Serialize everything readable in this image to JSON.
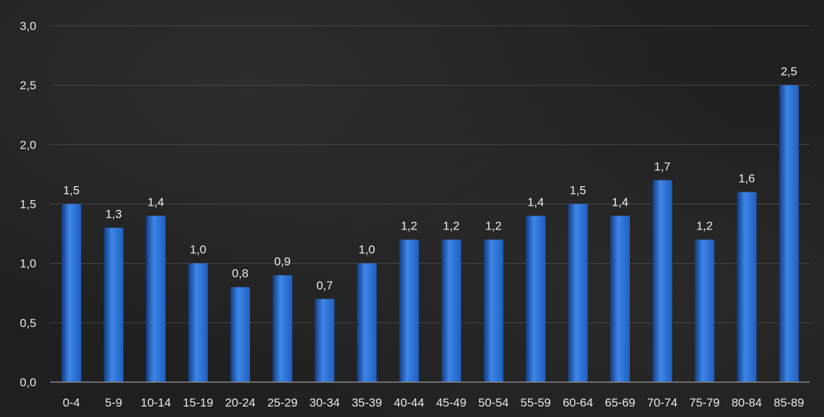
{
  "chart_data": {
    "type": "bar",
    "categories": [
      "0-4",
      "5-9",
      "10-14",
      "15-19",
      "20-24",
      "25-29",
      "30-34",
      "35-39",
      "40-44",
      "45-49",
      "50-54",
      "55-59",
      "60-64",
      "65-69",
      "70-74",
      "75-79",
      "80-84",
      "85-89"
    ],
    "values": [
      1.5,
      1.3,
      1.4,
      1.0,
      0.8,
      0.9,
      0.7,
      1.0,
      1.2,
      1.2,
      1.2,
      1.4,
      1.5,
      1.4,
      1.7,
      1.2,
      1.6,
      2.5
    ],
    "data_labels": [
      "1,5",
      "1,3",
      "1,4",
      "1,0",
      "0,8",
      "0,9",
      "0,7",
      "1,0",
      "1,2",
      "1,2",
      "1,2",
      "1,4",
      "1,5",
      "1,4",
      "1,7",
      "1,2",
      "1,6",
      "2,5"
    ],
    "ylim": [
      0,
      3.0
    ],
    "yticks": [
      0,
      0.5,
      1.0,
      1.5,
      2.0,
      2.5,
      3.0
    ],
    "ytick_labels": [
      "0,0",
      "0,5",
      "1,0",
      "1,5",
      "2,0",
      "2,5",
      "3,0"
    ],
    "title": "",
    "xlabel": "",
    "ylabel": "",
    "grid": true,
    "legend": "none",
    "colors": {
      "bar": "#1f5fbf",
      "bar_highlight": "#3d86e8",
      "bar_shadow": "#123c80",
      "text": "#e9e9e9",
      "grid": "#4a4a4a",
      "axis": "#8a8a8a"
    }
  }
}
